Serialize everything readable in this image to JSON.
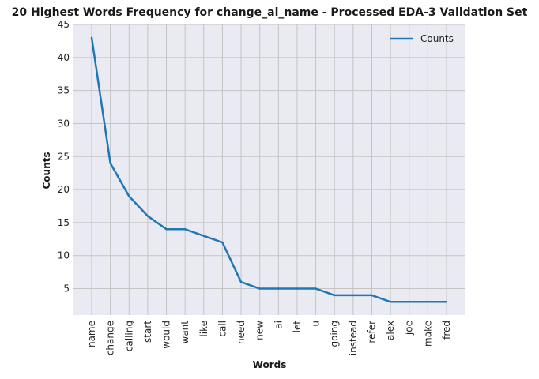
{
  "chart_data": {
    "type": "line",
    "title": "20 Highest Words Frequency for change_ai_name - Processed EDA-3 Validation Set",
    "xlabel": "Words",
    "ylabel": "Counts",
    "categories": [
      "name",
      "change",
      "calling",
      "start",
      "would",
      "want",
      "like",
      "call",
      "need",
      "new",
      "ai",
      "let",
      "u",
      "going",
      "instead",
      "refer",
      "alex",
      "joe",
      "make",
      "fred"
    ],
    "series": [
      {
        "name": "Counts",
        "values": [
          43,
          24,
          19,
          16,
          14,
          14,
          13,
          12,
          6,
          5,
          5,
          5,
          5,
          4,
          4,
          4,
          3,
          3,
          3,
          3
        ]
      }
    ],
    "ylim": [
      1,
      45
    ],
    "yticks": [
      5,
      10,
      15,
      20,
      25,
      30,
      35,
      40,
      45
    ],
    "grid": true,
    "legend_position": "top-right",
    "colors": {
      "line": "#1f77b4",
      "plot_background": "#eaeaf2",
      "grid": "#c4c4c4"
    }
  }
}
